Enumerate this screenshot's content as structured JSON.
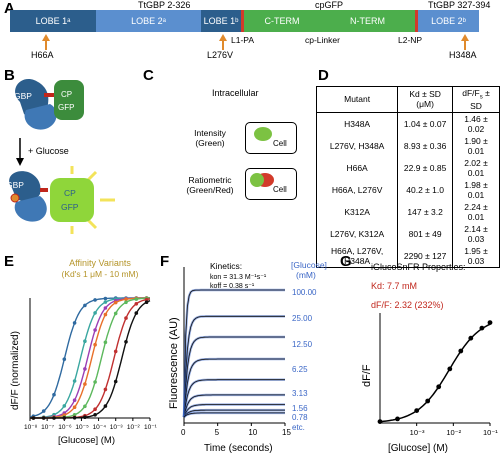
{
  "panel_letters": {
    "a": "A",
    "b": "B",
    "c": "C",
    "d": "D",
    "e": "E",
    "f": "F",
    "g": "G"
  },
  "panel_a": {
    "top_labels": {
      "left": "TtGBP 2-326",
      "middle": "cpGFP",
      "right": "TtGBP 327-394"
    },
    "segments": [
      {
        "label": "LOBE 1",
        "sub": "a",
        "color": "#2c5e8c"
      },
      {
        "label": "LOBE 2",
        "sub": "a",
        "color": "#5b8fcf"
      },
      {
        "label": "LOBE 1",
        "sub": "b",
        "color": "#2c5e8c"
      },
      {
        "label": "C-TERM",
        "sub": "",
        "color": "#4cae4c"
      },
      {
        "label": "N-TERM",
        "sub": "",
        "color": "#4cae4c"
      },
      {
        "label": "LOBE 2",
        "sub": "b",
        "color": "#5b8fcf"
      }
    ],
    "linkers": {
      "l1": "L1-PA",
      "cp": "cp-Linker",
      "l2": "L2-NP"
    },
    "mutations": [
      "H66A",
      "L276V",
      "H348A"
    ],
    "colors": {
      "arrow": "#e08a2c",
      "linker_red": "#d23a2a"
    }
  },
  "panel_b": {
    "gbp": "GBP",
    "cp": "CP",
    "gfp": "GFP",
    "glucose": "+ Glucose"
  },
  "panel_c": {
    "title": "Intracellular",
    "intensity": "Intensity\n(Green)",
    "ratiometric": "Ratiometric\n(Green/Red)",
    "cell": "Cell"
  },
  "panel_d": {
    "headers": [
      "Mutant",
      "Kd ± SD (μM)",
      "dF/F",
      "± SD"
    ],
    "rows": [
      [
        "H348A",
        "1.04 ± 0.07",
        "1.46 ± 0.02"
      ],
      [
        "L276V, H348A",
        "8.93 ± 0.36",
        "1.90 ± 0.01"
      ],
      [
        "H66A",
        "22.9 ± 0.85",
        "2.02 ± 0.01"
      ],
      [
        "H66A, L276V",
        "40.2 ± 1.0",
        "1.98 ± 0.01"
      ],
      [
        "K312A",
        "147 ± 3.2",
        "2.24 ± 0.01"
      ],
      [
        "L276V, K312A",
        "801 ± 49",
        "2.14 ± 0.03"
      ],
      [
        "H66A, L276V, H348A",
        "2290 ± 127",
        "1.95 ± 0.03"
      ]
    ],
    "dff_sub": "s"
  },
  "panel_e": {
    "title": "Affinity Variants",
    "subtitle": "(Kd's 1 μM - 10 mM)",
    "ylabel": "dF/F (normalized)",
    "xlabel": "[Glucose] (M)",
    "xticks": [
      "10⁻⁸",
      "10⁻⁷",
      "10⁻⁶",
      "10⁻⁵",
      "10⁻⁴",
      "10⁻³",
      "10⁻²",
      "10⁻¹"
    ]
  },
  "panel_f": {
    "ylabel": "Fluorescence (AU)",
    "xlabel": "Time (seconds)",
    "xticks": [
      "0",
      "5",
      "10",
      "15"
    ],
    "kinetics_title": "Kinetics:",
    "kon": "kon = 31.3 M⁻¹s⁻¹",
    "koff": "koff = 0.38 s⁻¹",
    "conc_header": "[Glucose]",
    "conc_unit": "(mM)",
    "concs": [
      "100.00",
      "25.00",
      "12.50",
      "6.25",
      "3.13",
      "1.56",
      "0.78",
      "etc."
    ],
    "blue": "#3a66c6"
  },
  "panel_g": {
    "title": "iGlucoSnFR Properties:",
    "kd": "Kd: 7.7 mM",
    "dff": "dF/F: 2.32 (232%)",
    "ylabel": "dF/F",
    "xlabel": "[Glucose] (M)",
    "xticks": [
      "10⁻³",
      "10⁻²",
      "10⁻¹"
    ],
    "red": "#c0261c"
  },
  "chart_data": [
    {
      "type": "line",
      "title": "Affinity Variants",
      "xlabel": "[Glucose] (M)",
      "ylabel": "dF/F (normalized)",
      "xscale": "log",
      "xlim": [
        1e-08,
        0.1
      ],
      "ylim": [
        0,
        1
      ],
      "series": [
        {
          "kd": 1.04e-06,
          "color": "#2f6aa0"
        },
        {
          "kd": 8.93e-06,
          "color": "#3aa7a0"
        },
        {
          "kd": 2.29e-05,
          "color": "#9b3fb5"
        },
        {
          "kd": 4.02e-05,
          "color": "#e8702a"
        },
        {
          "kd": 0.000147,
          "color": "#5cb85c"
        },
        {
          "kd": 0.000801,
          "color": "#c03030"
        },
        {
          "kd": 0.00229,
          "color": "#111111"
        }
      ]
    },
    {
      "type": "line",
      "xlabel": "Time (seconds)",
      "ylabel": "Fluorescence (AU)",
      "xlim": [
        0,
        15
      ],
      "series": [
        {
          "conc_mM": 100.0,
          "plateau": 0.92
        },
        {
          "conc_mM": 25.0,
          "plateau": 0.73
        },
        {
          "conc_mM": 12.5,
          "plateau": 0.58
        },
        {
          "conc_mM": 6.25,
          "plateau": 0.42
        },
        {
          "conc_mM": 3.13,
          "plateau": 0.27
        },
        {
          "conc_mM": 1.56,
          "plateau": 0.16
        },
        {
          "conc_mM": 0.78,
          "plateau": 0.09
        },
        {
          "conc_mM": 0.39,
          "plateau": 0.05
        },
        {
          "conc_mM": 0.2,
          "plateau": 0.03
        }
      ]
    },
    {
      "type": "line",
      "title": "iGlucoSnFR Properties:",
      "xlabel": "[Glucose] (M)",
      "ylabel": "dF/F",
      "xscale": "log",
      "kd_M": 0.0077,
      "dff_max": 2.32,
      "x": [
        0.0001,
        0.0003,
        0.001,
        0.002,
        0.004,
        0.008,
        0.016,
        0.03,
        0.06,
        0.1
      ],
      "y": [
        0.03,
        0.09,
        0.27,
        0.48,
        0.79,
        1.18,
        1.57,
        1.85,
        2.07,
        2.19
      ]
    }
  ]
}
